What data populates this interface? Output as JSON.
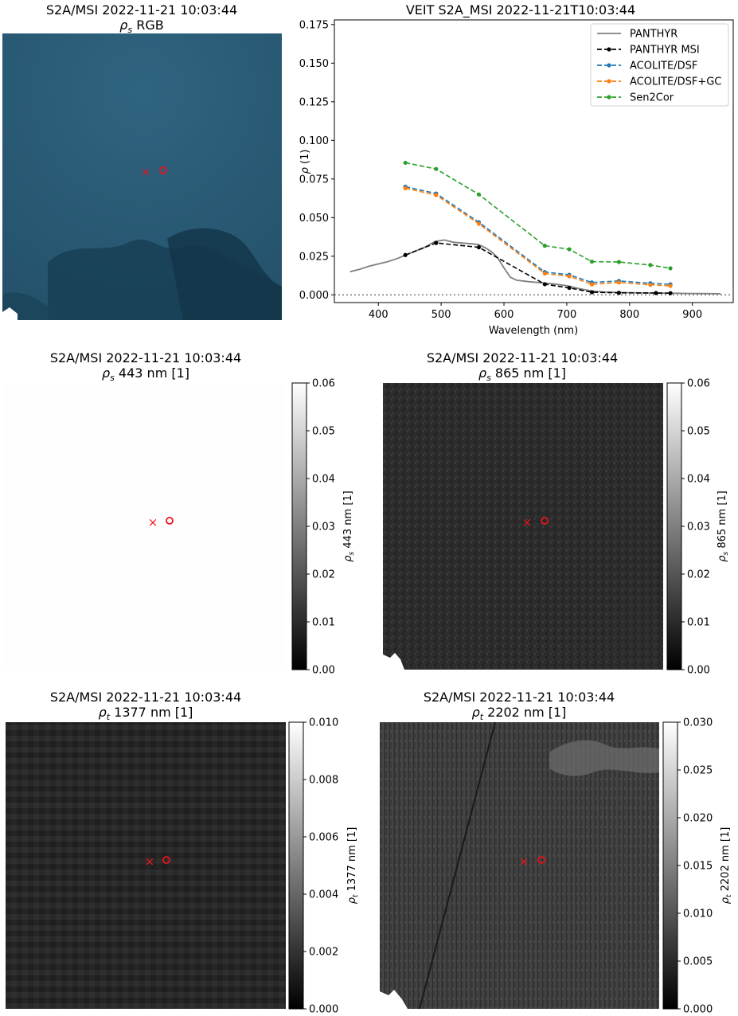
{
  "figure": {
    "panels": {
      "rgb": {
        "title_line1": "S2A/MSI 2022-11-21 10:03:44",
        "title_line2_sym": "ρ",
        "title_line2_sub": "s",
        "title_line2_rest": " RGB"
      },
      "b443": {
        "title_line1": "S2A/MSI 2022-11-21 10:03:44",
        "title_line2_sym": "ρ",
        "title_line2_sub": "s",
        "title_line2_rest": " 443 nm [1]",
        "colorbar_label_sym": "ρ",
        "colorbar_label_sub": "s",
        "colorbar_label_rest": " 443 nm [1]",
        "colorbar_ticks": [
          "0.00",
          "0.01",
          "0.02",
          "0.03",
          "0.04",
          "0.05",
          "0.06"
        ]
      },
      "b865": {
        "title_line1": "S2A/MSI 2022-11-21 10:03:44",
        "title_line2_sym": "ρ",
        "title_line2_sub": "s",
        "title_line2_rest": " 865 nm [1]",
        "colorbar_label_sym": "ρ",
        "colorbar_label_sub": "s",
        "colorbar_label_rest": " 865 nm [1]",
        "colorbar_ticks": [
          "0.00",
          "0.01",
          "0.02",
          "0.03",
          "0.04",
          "0.05",
          "0.06"
        ]
      },
      "b1377": {
        "title_line1": "S2A/MSI 2022-11-21 10:03:44",
        "title_line2_sym": "ρ",
        "title_line2_sub": "t",
        "title_line2_rest": " 1377 nm [1]",
        "colorbar_label_sym": "ρ",
        "colorbar_label_sub": "t",
        "colorbar_label_rest": " 1377 nm [1]",
        "colorbar_ticks": [
          "0.000",
          "0.002",
          "0.004",
          "0.006",
          "0.008",
          "0.010"
        ]
      },
      "b2202": {
        "title_line1": "S2A/MSI 2022-11-21 10:03:44",
        "title_line2_sym": "ρ",
        "title_line2_sub": "t",
        "title_line2_rest": " 2202 nm [1]",
        "colorbar_label_sym": "ρ",
        "colorbar_label_sub": "t",
        "colorbar_label_rest": " 2202 nm [1]",
        "colorbar_ticks": [
          "0.000",
          "0.005",
          "0.010",
          "0.015",
          "0.020",
          "0.025",
          "0.030"
        ]
      }
    },
    "colors": {
      "marker": "#e8141c",
      "water": "#2c5c74"
    }
  },
  "chart_data": {
    "type": "line",
    "title": "VEIT S2A_MSI 2022-11-21T10:03:44",
    "xlabel": "Wavelength (nm)",
    "ylabel_sym": "ρ",
    "ylabel_rest": " (1)",
    "xlim": [
      330,
      965
    ],
    "ylim": [
      -0.005,
      0.178
    ],
    "xticks": [
      400,
      500,
      600,
      700,
      800,
      900
    ],
    "yticks": [
      0.0,
      0.025,
      0.05,
      0.075,
      0.1,
      0.125,
      0.15,
      0.175
    ],
    "ytick_labels": [
      "0.000",
      "0.025",
      "0.050",
      "0.075",
      "0.100",
      "0.125",
      "0.150",
      "0.175"
    ],
    "hline_y": 0,
    "legend_position": "top-right",
    "series": [
      {
        "name": "PANTHYR",
        "color": "#7f7f7f",
        "style": "solid",
        "marker": false,
        "x": [
          355,
          370,
          385,
          400,
          415,
          430,
          445,
          460,
          475,
          490,
          505,
          520,
          535,
          550,
          560,
          570,
          580,
          590,
          600,
          610,
          620,
          640,
          660,
          680,
          700,
          720,
          740,
          760,
          780,
          800,
          820,
          840,
          860,
          880,
          900,
          920,
          945
        ],
        "y": [
          0.015,
          0.0165,
          0.0185,
          0.02,
          0.0215,
          0.0235,
          0.026,
          0.0285,
          0.031,
          0.0345,
          0.0355,
          0.034,
          0.0335,
          0.033,
          0.0325,
          0.0305,
          0.028,
          0.024,
          0.0175,
          0.0115,
          0.0095,
          0.0085,
          0.0078,
          0.007,
          0.006,
          0.004,
          0.0025,
          0.0018,
          0.0016,
          0.0014,
          0.0013,
          0.0012,
          0.0011,
          0.001,
          0.0009,
          0.0008,
          0.0007
        ]
      },
      {
        "name": "PANTHYR MSI",
        "color": "#000000",
        "style": "dashed",
        "marker": true,
        "x": [
          443,
          492,
          560,
          665,
          704,
          740,
          783,
          842,
          865
        ],
        "y": [
          0.0258,
          0.0336,
          0.0308,
          0.0069,
          0.0045,
          0.0017,
          0.0013,
          0.0012,
          0.0011
        ]
      },
      {
        "name": "ACOLITE/DSF",
        "color": "#1f77b4",
        "style": "dashed",
        "marker": true,
        "x": [
          443,
          492,
          560,
          665,
          704,
          740,
          783,
          833,
          865
        ],
        "y": [
          0.07,
          0.0656,
          0.047,
          0.0148,
          0.013,
          0.008,
          0.009,
          0.0075,
          0.0068
        ]
      },
      {
        "name": "ACOLITE/DSF+GC",
        "color": "#ff7f0e",
        "style": "dashed",
        "marker": true,
        "x": [
          443,
          492,
          560,
          665,
          704,
          740,
          783,
          833,
          865
        ],
        "y": [
          0.069,
          0.0646,
          0.046,
          0.0138,
          0.012,
          0.0068,
          0.008,
          0.0065,
          0.0058
        ]
      },
      {
        "name": "Sen2Cor",
        "color": "#2ca02c",
        "style": "dashed",
        "marker": true,
        "x": [
          443,
          492,
          560,
          665,
          704,
          740,
          783,
          833,
          865
        ],
        "y": [
          0.0855,
          0.0815,
          0.065,
          0.0318,
          0.0295,
          0.0215,
          0.0213,
          0.0193,
          0.0172
        ]
      }
    ]
  }
}
